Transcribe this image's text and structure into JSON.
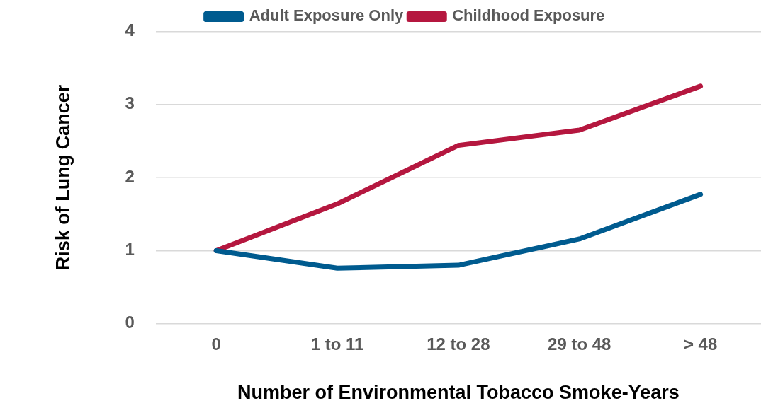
{
  "chart_data": {
    "type": "line",
    "xlabel": "Number of Environmental Tobacco Smoke-Years",
    "ylabel": "Risk of Lung Cancer",
    "categories": [
      "0",
      "1 to 11",
      "12 to 28",
      "29 to 48",
      "> 48"
    ],
    "series": [
      {
        "name": "Adult Exposure Only",
        "color": "#005b8f",
        "values": [
          1.0,
          0.76,
          0.8,
          1.16,
          1.77
        ]
      },
      {
        "name": "Childhood Exposure",
        "color": "#b5173f",
        "values": [
          1.0,
          1.64,
          2.44,
          2.65,
          3.25
        ]
      }
    ],
    "ylim": [
      0,
      4
    ],
    "yticks": [
      0,
      1,
      2,
      3,
      4
    ],
    "grid": "y",
    "legend": "top",
    "marker": "none",
    "line_style": "solid"
  }
}
